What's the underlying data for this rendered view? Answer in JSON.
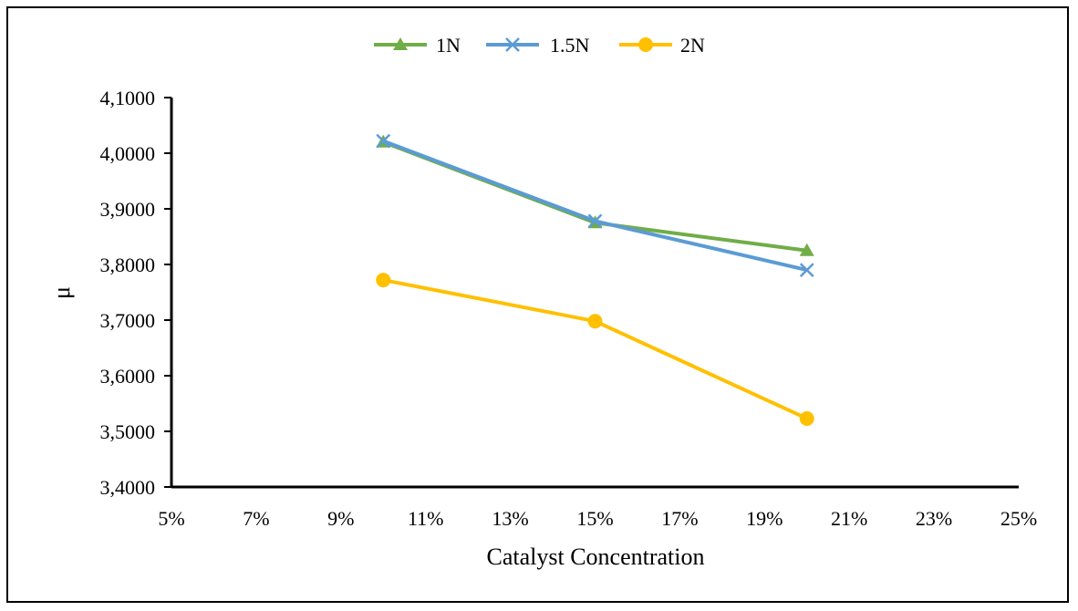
{
  "chart_data": {
    "type": "line",
    "title": "",
    "xlabel": "Catalyst Concentration",
    "ylabel": "μ",
    "x_ticks": [
      "5%",
      "7%",
      "9%",
      "11%",
      "13%",
      "15%",
      "17%",
      "19%",
      "21%",
      "23%",
      "25%"
    ],
    "y_ticks": [
      "3,4000",
      "3,5000",
      "3,6000",
      "3,7000",
      "3,8000",
      "3,9000",
      "4,0000",
      "4,1000"
    ],
    "xlim": [
      0.05,
      0.25
    ],
    "ylim": [
      3.4,
      4.1
    ],
    "grid": false,
    "legend_position": "top",
    "x": [
      0.1,
      0.15,
      0.2
    ],
    "series": [
      {
        "name": "1N",
        "values": [
          4.02,
          3.875,
          3.825
        ],
        "color": "#70AD47",
        "marker": "triangle"
      },
      {
        "name": "1.5N",
        "values": [
          4.022,
          3.878,
          3.79
        ],
        "color": "#5B9BD5",
        "marker": "x"
      },
      {
        "name": "2N",
        "values": [
          3.772,
          3.698,
          3.523
        ],
        "color": "#FFC000",
        "marker": "circle"
      }
    ]
  }
}
